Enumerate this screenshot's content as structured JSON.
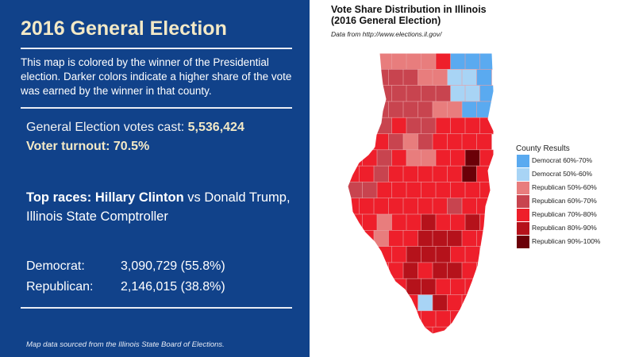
{
  "left": {
    "title": "2016 General Election",
    "description": "This map is colored by the winner of the Presidential election. Darker colors indicate a higher share of the vote was earned by the winner in that county.",
    "votes_cast_label": "General Election votes cast: ",
    "votes_cast_value": "5,536,424",
    "turnout_label": "Voter turnout: ",
    "turnout_value": "70.5%",
    "top_races_label": "Top races: ",
    "race_candidate_1": "Hillary Clinton",
    "race_vs": " vs Donald Trump, Illinois State Comptroller",
    "results": [
      {
        "party": "Democrat:",
        "value": "3,090,729 (55.8%)"
      },
      {
        "party": "Republican:",
        "value": "2,146,015 (38.8%)"
      }
    ],
    "footnote": "Map data sourced from the Illinois State Board of Elections."
  },
  "map": {
    "title_line1": "Vote Share Distribution in Illinois",
    "title_line2": "(2016 General Election)",
    "subtitle": "Data from http://www.elections.il.gov/",
    "legend_title": "County Results",
    "legend": [
      {
        "label": "Democrat 60%-70%",
        "color": "#5aaaf0"
      },
      {
        "label": "Democrat 50%-60%",
        "color": "#a8d4f5"
      },
      {
        "label": "Republican 50%-60%",
        "color": "#e87d7d"
      },
      {
        "label": "Republican 60%-70%",
        "color": "#c8444f"
      },
      {
        "label": "Republican 70%-80%",
        "color": "#ee1f2b"
      },
      {
        "label": "Republican 80%-90%",
        "color": "#b5121b"
      },
      {
        "label": "Republican 90%-100%",
        "color": "#6b0008"
      }
    ]
  }
}
